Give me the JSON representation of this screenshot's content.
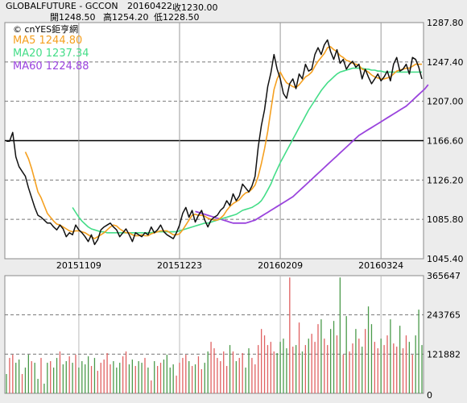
{
  "header": {
    "symbol": "GLOBALFUTURE - GCCON",
    "date": "20160422",
    "close_label": "收1230.00",
    "open_label": "開1248.50",
    "high_label": "高1254.20",
    "low_label": "低1228.50"
  },
  "watermark": "© cnYES鉅亨網",
  "legend": [
    {
      "label": "MA5 1244.80",
      "color": "#f5a020"
    },
    {
      "label": "MA20 1237.34",
      "color": "#44dd88"
    },
    {
      "label": "MA60 1224.88",
      "color": "#9a44dd"
    }
  ],
  "chart_data": [
    {
      "type": "line",
      "ylim": [
        1045.4,
        1287.8
      ],
      "yticks": [
        "1287.80",
        "1247.40",
        "1207.00",
        "1166.60",
        "1126.20",
        "1085.80",
        "1045.40"
      ],
      "xtick_labels": [
        "20151109",
        "20151223",
        "20160209",
        "20160324"
      ],
      "reference_value": 1166.6,
      "grid": true,
      "series": [
        {
          "name": "MA5",
          "color": "#f5a020"
        },
        {
          "name": "MA20",
          "color": "#44dd88"
        },
        {
          "name": "MA60",
          "color": "#9a44dd"
        }
      ],
      "price": [
        1166,
        1166,
        1175,
        1150,
        1140,
        1135,
        1130,
        1118,
        1108,
        1098,
        1090,
        1088,
        1085,
        1082,
        1082,
        1078,
        1075,
        1080,
        1076,
        1068,
        1072,
        1070,
        1080,
        1075,
        1072,
        1068,
        1063,
        1070,
        1060,
        1065,
        1075,
        1078,
        1080,
        1082,
        1078,
        1075,
        1068,
        1072,
        1076,
        1070,
        1063,
        1072,
        1070,
        1068,
        1072,
        1070,
        1078,
        1072,
        1075,
        1080,
        1073,
        1070,
        1068,
        1066,
        1072,
        1080,
        1092,
        1098,
        1088,
        1095,
        1083,
        1090,
        1095,
        1085,
        1078,
        1085,
        1088,
        1090,
        1095,
        1098,
        1105,
        1100,
        1112,
        1105,
        1110,
        1122,
        1118,
        1114,
        1120,
        1130,
        1160,
        1182,
        1198,
        1222,
        1236,
        1255,
        1240,
        1230,
        1215,
        1210,
        1225,
        1230,
        1220,
        1235,
        1230,
        1245,
        1238,
        1240,
        1255,
        1262,
        1255,
        1265,
        1270,
        1258,
        1250,
        1260,
        1246,
        1250,
        1240,
        1245,
        1248,
        1242,
        1245,
        1230,
        1240,
        1232,
        1225,
        1230,
        1235,
        1228,
        1232,
        1238,
        1228,
        1245,
        1252,
        1238,
        1240,
        1245,
        1235,
        1252,
        1250,
        1242,
        1230
      ],
      "ma5": [
        null,
        null,
        null,
        null,
        null,
        null,
        1155,
        1148,
        1138,
        1126,
        1114,
        1108,
        1100,
        1092,
        1088,
        1084,
        1081,
        1080,
        1078,
        1076,
        1074,
        1073,
        1074,
        1074,
        1073,
        1072,
        1070,
        1068,
        1066,
        1068,
        1070,
        1072,
        1075,
        1078,
        1080,
        1079,
        1076,
        1074,
        1072,
        1072,
        1070,
        1069,
        1069,
        1070,
        1069,
        1069,
        1071,
        1072,
        1073,
        1074,
        1074,
        1074,
        1072,
        1070,
        1070,
        1071,
        1075,
        1080,
        1085,
        1090,
        1091,
        1090,
        1090,
        1089,
        1087,
        1086,
        1085,
        1085,
        1087,
        1090,
        1095,
        1099,
        1102,
        1104,
        1106,
        1110,
        1113,
        1114,
        1117,
        1121,
        1130,
        1143,
        1158,
        1176,
        1198,
        1219,
        1230,
        1237,
        1231,
        1226,
        1224,
        1222,
        1221,
        1224,
        1228,
        1232,
        1234,
        1237,
        1243,
        1248,
        1252,
        1256,
        1262,
        1263,
        1260,
        1258,
        1254,
        1252,
        1249,
        1248,
        1246,
        1245,
        1244,
        1240,
        1239,
        1237,
        1234,
        1232,
        1231,
        1230,
        1230,
        1231,
        1232,
        1235,
        1238,
        1239,
        1240,
        1241,
        1241,
        1243,
        1245,
        1245,
        1245
      ],
      "ma20": [
        null,
        null,
        null,
        null,
        null,
        null,
        null,
        null,
        null,
        null,
        null,
        null,
        null,
        null,
        null,
        null,
        null,
        null,
        null,
        null,
        null,
        1098,
        1093,
        1088,
        1084,
        1081,
        1078,
        1076,
        1075,
        1074,
        1073,
        1073,
        1072,
        1072,
        1072,
        1072,
        1072,
        1072,
        1072,
        1072,
        1072,
        1072,
        1072,
        1072,
        1072,
        1072,
        1072,
        1073,
        1073,
        1073,
        1073,
        1073,
        1073,
        1073,
        1073,
        1074,
        1075,
        1076,
        1077,
        1078,
        1079,
        1080,
        1081,
        1082,
        1082,
        1083,
        1084,
        1085,
        1086,
        1087,
        1088,
        1089,
        1090,
        1091,
        1093,
        1095,
        1096,
        1097,
        1098,
        1100,
        1102,
        1105,
        1110,
        1116,
        1122,
        1130,
        1137,
        1144,
        1150,
        1156,
        1162,
        1168,
        1174,
        1180,
        1186,
        1192,
        1198,
        1203,
        1208,
        1213,
        1218,
        1222,
        1226,
        1229,
        1232,
        1235,
        1237,
        1238,
        1239,
        1240,
        1241,
        1241,
        1241,
        1241,
        1240,
        1240,
        1239,
        1239,
        1238,
        1238,
        1237,
        1237,
        1237,
        1237,
        1237,
        1237,
        1237,
        1237,
        1237,
        1237,
        1237,
        1237,
        1237
      ],
      "ma60": [
        null,
        null,
        null,
        null,
        null,
        null,
        null,
        null,
        null,
        null,
        null,
        null,
        null,
        null,
        null,
        null,
        null,
        null,
        null,
        null,
        null,
        null,
        null,
        null,
        null,
        null,
        null,
        null,
        null,
        null,
        null,
        null,
        null,
        null,
        null,
        null,
        null,
        null,
        null,
        null,
        null,
        null,
        null,
        null,
        null,
        null,
        null,
        null,
        null,
        null,
        null,
        null,
        null,
        null,
        null,
        null,
        null,
        null,
        null,
        null,
        1094,
        1093,
        1092,
        1091,
        1090,
        1089,
        1088,
        1087,
        1086,
        1085,
        1084,
        1083,
        1082,
        1082,
        1082,
        1082,
        1082,
        1083,
        1084,
        1085,
        1087,
        1089,
        1091,
        1093,
        1095,
        1097,
        1099,
        1101,
        1103,
        1105,
        1107,
        1109,
        1112,
        1115,
        1118,
        1121,
        1124,
        1127,
        1130,
        1133,
        1136,
        1139,
        1142,
        1145,
        1148,
        1151,
        1154,
        1157,
        1160,
        1163,
        1166,
        1169,
        1172,
        1174,
        1176,
        1178,
        1180,
        1182,
        1184,
        1186,
        1188,
        1190,
        1192,
        1194,
        1196,
        1198,
        1200,
        1202,
        1205,
        1208,
        1211,
        1214,
        1217,
        1220,
        1224
      ]
    },
    {
      "type": "bar",
      "ylim": [
        0,
        365647
      ],
      "yticks": [
        "365647",
        "243765",
        "121882",
        "0"
      ],
      "volume": [
        60000,
        110000,
        120000,
        95000,
        105000,
        60000,
        80000,
        120000,
        100000,
        95000,
        45000,
        110000,
        30000,
        95000,
        100000,
        80000,
        110000,
        130000,
        90000,
        100000,
        115000,
        95000,
        120000,
        80000,
        100000,
        90000,
        115000,
        85000,
        110000,
        70000,
        95000,
        105000,
        125000,
        90000,
        100000,
        80000,
        95000,
        115000,
        130000,
        90000,
        105000,
        85000,
        100000,
        95000,
        110000,
        80000,
        40000,
        100000,
        85000,
        95000,
        105000,
        120000,
        80000,
        90000,
        55000,
        95000,
        110000,
        120000,
        100000,
        85000,
        90000,
        115000,
        75000,
        95000,
        130000,
        160000,
        140000,
        110000,
        100000,
        130000,
        85000,
        150000,
        130000,
        100000,
        110000,
        125000,
        80000,
        140000,
        110000,
        90000,
        150000,
        200000,
        180000,
        150000,
        160000,
        130000,
        125000,
        160000,
        170000,
        140000,
        360000,
        145000,
        150000,
        220000,
        130000,
        150000,
        170000,
        185000,
        160000,
        215000,
        230000,
        170000,
        150000,
        200000,
        225000,
        180000,
        360000,
        120000,
        240000,
        130000,
        155000,
        200000,
        170000,
        145000,
        200000,
        270000,
        215000,
        160000,
        140000,
        170000,
        150000,
        180000,
        230000,
        155000,
        145000,
        210000,
        140000,
        180000,
        160000,
        120000,
        180000,
        260000,
        150000
      ],
      "volume_up": [
        false,
        true,
        true,
        false,
        false,
        true,
        false,
        false,
        true,
        false,
        false,
        true,
        false,
        false,
        true,
        false,
        false,
        true,
        false,
        false,
        true,
        false,
        true,
        false,
        false,
        false,
        false,
        true,
        false,
        true,
        true,
        true,
        true,
        true,
        false,
        false,
        false,
        true,
        true,
        false,
        false,
        true,
        false,
        false,
        true,
        false,
        true,
        false,
        true,
        true,
        false,
        false,
        false,
        false,
        true,
        true,
        true,
        true,
        false,
        true,
        false,
        true,
        true,
        false,
        false,
        true,
        true,
        true,
        true,
        true,
        true,
        false,
        true,
        false,
        true,
        true,
        false,
        false,
        true,
        true,
        true,
        true,
        true,
        true,
        true,
        true,
        false,
        false,
        false,
        false,
        true,
        true,
        false,
        true,
        false,
        true,
        false,
        true,
        true,
        true,
        false,
        true,
        true,
        false,
        false,
        true,
        false,
        true,
        false,
        true,
        true,
        false,
        true,
        false,
        true,
        false,
        false,
        true,
        true,
        false,
        true,
        true,
        false,
        true,
        true,
        false,
        true,
        true,
        false,
        true,
        false,
        false,
        false
      ]
    }
  ]
}
